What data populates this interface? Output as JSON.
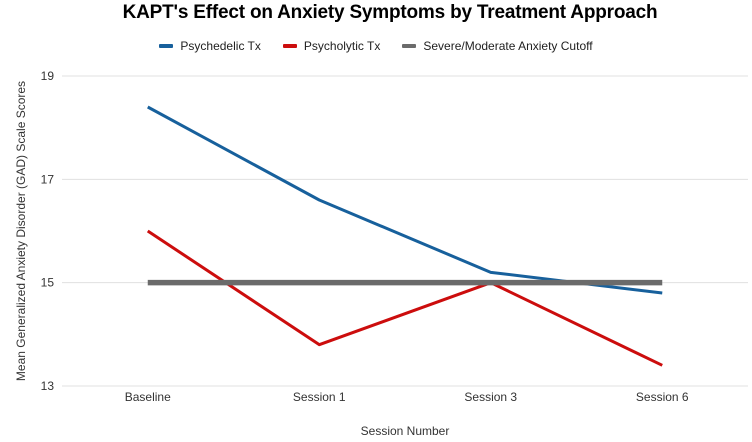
{
  "title": "KAPT's Effect on Anxiety Symptoms by Treatment Approach",
  "chart_data": {
    "type": "line",
    "title": "KAPT's Effect on Anxiety Symptoms by Treatment Approach",
    "categories": [
      "Baseline",
      "Session 1",
      "Session 3",
      "Session 6"
    ],
    "series": [
      {
        "name": "Psychedelic Tx",
        "color": "#17609c",
        "line_width": 3,
        "values": [
          18.4,
          16.6,
          15.2,
          14.8
        ]
      },
      {
        "name": "Psycholytic Tx",
        "color": "#cc0d0d",
        "line_width": 3,
        "values": [
          16.0,
          13.8,
          15.0,
          13.4
        ]
      },
      {
        "name": "Severe/Moderate Anxiety Cutoff",
        "color": "#6b6b6b",
        "line_width": 5.5,
        "values": [
          15,
          15,
          15,
          15
        ]
      }
    ],
    "xlabel": "Session Number",
    "ylabel": "Mean Generalized Anxiety Disorder (GAD) Scale Scores",
    "ylim": [
      13,
      19
    ],
    "yticks": [
      13,
      15,
      17,
      19
    ],
    "grid": true,
    "gridline_color": "#e0e0e0",
    "legend_position": "top"
  }
}
